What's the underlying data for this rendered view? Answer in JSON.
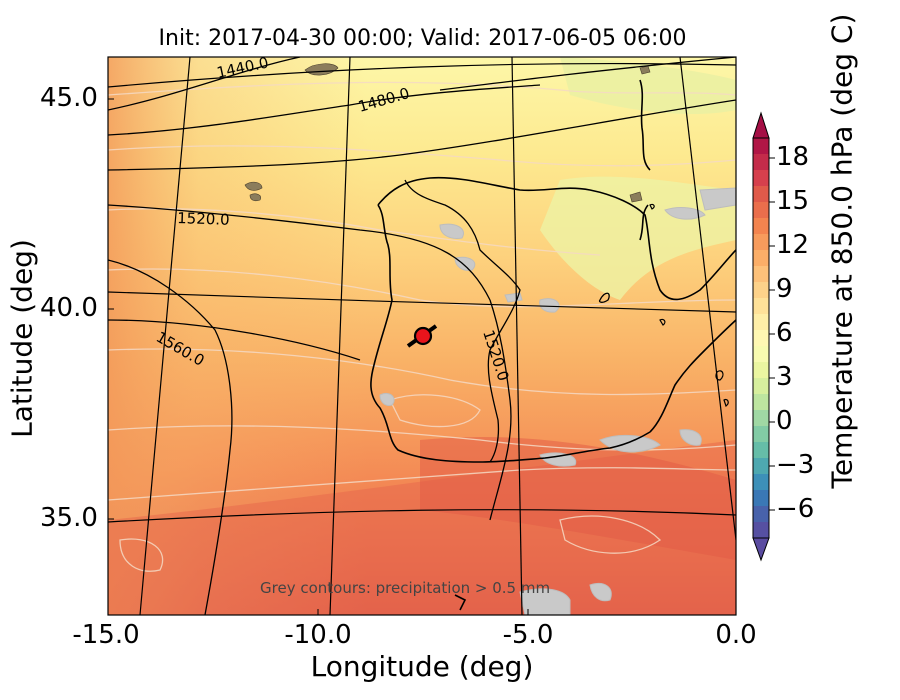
{
  "title": "Init: 2017-04-30 00:00; Valid: 2017-06-05 06:00",
  "xlabel": "Longitude (deg)",
  "ylabel": "Latitude (deg)",
  "colorbar_label": "Temperature at 850.0 hPa (deg C)",
  "annotation": "Grey contours: precipitation > 0.5 mm",
  "x_ticks": [
    "-15.0",
    "-10.0",
    "-5.0",
    "0.0"
  ],
  "y_ticks": [
    "45.0",
    "40.0",
    "35.0"
  ],
  "colorbar_ticks": [
    "18",
    "15",
    "12",
    "9",
    "6",
    "3",
    "0",
    "−3",
    "−6"
  ],
  "contour_labels": [
    "1440.0",
    "1480.0",
    "1520.0",
    "1560.0",
    "1520.0"
  ],
  "marker": {
    "lon": -7.7,
    "lat": 39.3,
    "color": "#e8141c"
  }
}
